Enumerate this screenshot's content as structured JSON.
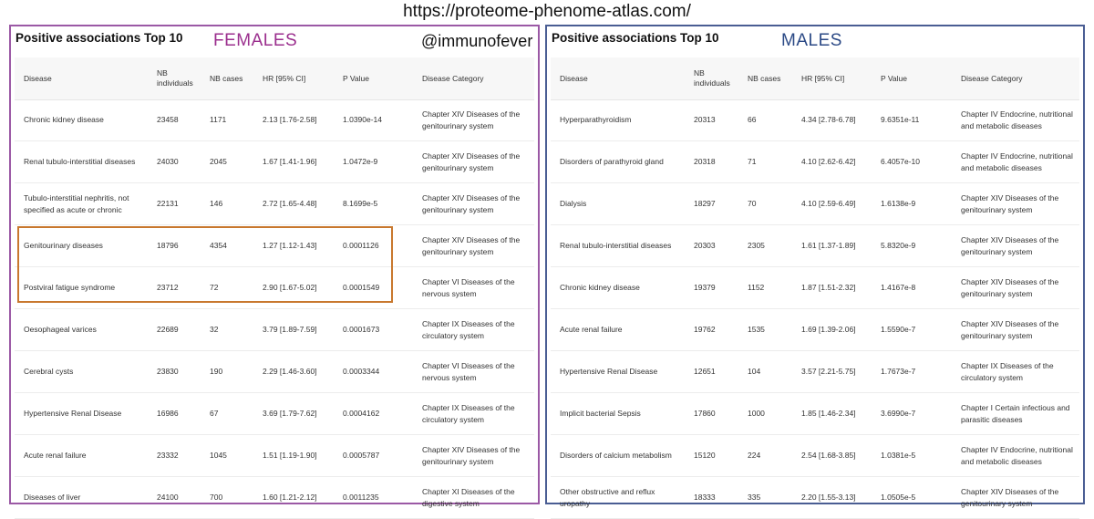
{
  "url": "https://proteome-phenome-atlas.com/",
  "females": {
    "title": "Positive associations Top 10",
    "group_label": "FEMALES",
    "handle": "@immunofever",
    "headers": {
      "disease": "Disease",
      "nb_individuals": "NB individuals",
      "nb_cases": "NB cases",
      "hr": "HR [95% CI]",
      "p_value": "P Value",
      "category": "Disease Category"
    },
    "rows": [
      {
        "disease": "Chronic kidney disease",
        "nb_individuals": "23458",
        "nb_cases": "1171",
        "hr": "2.13 [1.76-2.58]",
        "p_value": "1.0390e-14",
        "category": "Chapter XIV Diseases of the genitourinary system"
      },
      {
        "disease": "Renal tubulo-interstitial diseases",
        "nb_individuals": "24030",
        "nb_cases": "2045",
        "hr": "1.67 [1.41-1.96]",
        "p_value": "1.0472e-9",
        "category": "Chapter XIV Diseases of the genitourinary system"
      },
      {
        "disease": "Tubulo-interstitial nephritis, not specified as acute or chronic",
        "nb_individuals": "22131",
        "nb_cases": "146",
        "hr": "2.72 [1.65-4.48]",
        "p_value": "8.1699e-5",
        "category": "Chapter XIV Diseases of the genitourinary system"
      },
      {
        "disease": "Genitourinary diseases",
        "nb_individuals": "18796",
        "nb_cases": "4354",
        "hr": "1.27 [1.12-1.43]",
        "p_value": "0.0001126",
        "category": "Chapter XIV Diseases of the genitourinary system"
      },
      {
        "disease": "Postviral fatigue syndrome",
        "nb_individuals": "23712",
        "nb_cases": "72",
        "hr": "2.90 [1.67-5.02]",
        "p_value": "0.0001549",
        "category": "Chapter VI Diseases of the nervous system"
      },
      {
        "disease": "Oesophageal varices",
        "nb_individuals": "22689",
        "nb_cases": "32",
        "hr": "3.79 [1.89-7.59]",
        "p_value": "0.0001673",
        "category": "Chapter IX Diseases of the circulatory system"
      },
      {
        "disease": "Cerebral cysts",
        "nb_individuals": "23830",
        "nb_cases": "190",
        "hr": "2.29 [1.46-3.60]",
        "p_value": "0.0003344",
        "category": "Chapter VI Diseases of the nervous system"
      },
      {
        "disease": "Hypertensive Renal Disease",
        "nb_individuals": "16986",
        "nb_cases": "67",
        "hr": "3.69 [1.79-7.62]",
        "p_value": "0.0004162",
        "category": "Chapter IX Diseases of the circulatory system"
      },
      {
        "disease": "Acute renal failure",
        "nb_individuals": "23332",
        "nb_cases": "1045",
        "hr": "1.51 [1.19-1.90]",
        "p_value": "0.0005787",
        "category": "Chapter XIV Diseases of the genitourinary system"
      },
      {
        "disease": "Diseases of liver",
        "nb_individuals": "24100",
        "nb_cases": "700",
        "hr": "1.60 [1.21-2.12]",
        "p_value": "0.0011235",
        "category": "Chapter XI Diseases of the digestive system"
      }
    ]
  },
  "males": {
    "title": "Positive associations Top 10",
    "group_label": "MALES",
    "headers": {
      "disease": "Disease",
      "nb_individuals": "NB individuals",
      "nb_cases": "NB cases",
      "hr": "HR [95% CI]",
      "p_value": "P Value",
      "category": "Disease Category"
    },
    "rows": [
      {
        "disease": "Hyperparathyroidism",
        "nb_individuals": "20313",
        "nb_cases": "66",
        "hr": "4.34 [2.78-6.78]",
        "p_value": "9.6351e-11",
        "category": "Chapter IV Endocrine, nutritional and metabolic diseases"
      },
      {
        "disease": "Disorders of parathyroid gland",
        "nb_individuals": "20318",
        "nb_cases": "71",
        "hr": "4.10 [2.62-6.42]",
        "p_value": "6.4057e-10",
        "category": "Chapter IV Endocrine, nutritional and metabolic diseases"
      },
      {
        "disease": "Dialysis",
        "nb_individuals": "18297",
        "nb_cases": "70",
        "hr": "4.10 [2.59-6.49]",
        "p_value": "1.6138e-9",
        "category": "Chapter XIV Diseases of the genitourinary system"
      },
      {
        "disease": "Renal tubulo-interstitial diseases",
        "nb_individuals": "20303",
        "nb_cases": "2305",
        "hr": "1.61 [1.37-1.89]",
        "p_value": "5.8320e-9",
        "category": "Chapter XIV Diseases of the genitourinary system"
      },
      {
        "disease": "Chronic kidney disease",
        "nb_individuals": "19379",
        "nb_cases": "1152",
        "hr": "1.87 [1.51-2.32]",
        "p_value": "1.4167e-8",
        "category": "Chapter XIV Diseases of the genitourinary system"
      },
      {
        "disease": "Acute renal failure",
        "nb_individuals": "19762",
        "nb_cases": "1535",
        "hr": "1.69 [1.39-2.06]",
        "p_value": "1.5590e-7",
        "category": "Chapter XIV Diseases of the genitourinary system"
      },
      {
        "disease": "Hypertensive Renal Disease",
        "nb_individuals": "12651",
        "nb_cases": "104",
        "hr": "3.57 [2.21-5.75]",
        "p_value": "1.7673e-7",
        "category": "Chapter IX Diseases of the circulatory system"
      },
      {
        "disease": "Implicit bacterial Sepsis",
        "nb_individuals": "17860",
        "nb_cases": "1000",
        "hr": "1.85 [1.46-2.34]",
        "p_value": "3.6990e-7",
        "category": "Chapter I Certain infectious and parasitic diseases"
      },
      {
        "disease": "Disorders of calcium metabolism",
        "nb_individuals": "15120",
        "nb_cases": "224",
        "hr": "2.54 [1.68-3.85]",
        "p_value": "1.0381e-5",
        "category": "Chapter IV Endocrine, nutritional and metabolic diseases"
      },
      {
        "disease": "Other obstructive and reflux uropathy",
        "nb_individuals": "18333",
        "nb_cases": "335",
        "hr": "2.20 [1.55-3.13]",
        "p_value": "1.0505e-5",
        "category": "Chapter XIV Diseases of the genitourinary system"
      }
    ]
  },
  "colors": {
    "females_border": "#9b59a5",
    "females_label": "#9b2f8e",
    "males_border": "#4a5d93",
    "males_label": "#2c4a86",
    "highlight_box": "#c8782e"
  }
}
